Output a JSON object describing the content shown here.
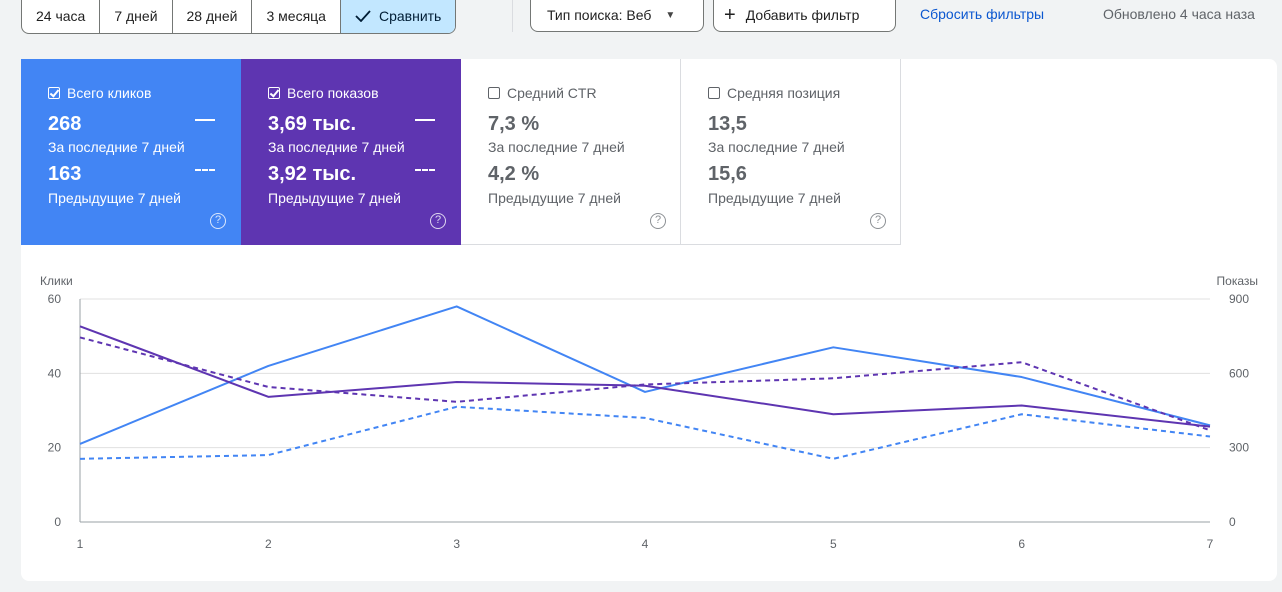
{
  "toolbar": {
    "ranges": [
      "24 часа",
      "7 дней",
      "28 дней",
      "3 месяца"
    ],
    "compare_label": "Сравнить",
    "search_type_label": "Тип поиска: Веб",
    "add_filter_label": "Добавить фильтр",
    "reset_label": "Сбросить фильтры",
    "updated_label": "Обновлено 4 часа наза"
  },
  "metrics": [
    {
      "label": "Всего кликов",
      "checked": true,
      "current": "268",
      "current_label": "За последние 7 дней",
      "previous": "163",
      "previous_label": "Предыдущие 7 дней",
      "color": "#4285f4"
    },
    {
      "label": "Всего показов",
      "checked": true,
      "current": "3,69 тыс.",
      "current_label": "За последние 7 дней",
      "previous": "3,92 тыс.",
      "previous_label": "Предыдущие 7 дней",
      "color": "#5e35b1"
    },
    {
      "label": "Средний CTR",
      "checked": false,
      "current": "7,3 %",
      "current_label": "За последние 7 дней",
      "previous": "4,2 %",
      "previous_label": "Предыдущие 7 дней"
    },
    {
      "label": "Средняя позиция",
      "checked": false,
      "current": "13,5",
      "current_label": "За последние 7 дней",
      "previous": "15,6",
      "previous_label": "Предыдущие 7 дней"
    }
  ],
  "help_glyph": "?",
  "chart_data": {
    "type": "line",
    "x": [
      1,
      2,
      3,
      4,
      5,
      6,
      7
    ],
    "ylabel": "Клики",
    "y2label": "Показы",
    "ylim": [
      0,
      60
    ],
    "y2lim": [
      0,
      900
    ],
    "yticks": [
      0,
      20,
      40,
      60
    ],
    "y2ticks": [
      0,
      300,
      600,
      900
    ],
    "grid": true,
    "series": [
      {
        "axis": "left",
        "style": "solid",
        "color": "#4285f4",
        "values": [
          21,
          42,
          58,
          35,
          47,
          39,
          26
        ]
      },
      {
        "axis": "left",
        "style": "dashed",
        "color": "#4285f4",
        "values": [
          17,
          18,
          31,
          28,
          17,
          29,
          23
        ]
      },
      {
        "axis": "right",
        "style": "solid",
        "color": "#5e35b1",
        "values": [
          790,
          505,
          565,
          550,
          435,
          470,
          385
        ]
      },
      {
        "axis": "right",
        "style": "dashed",
        "color": "#5e35b1",
        "values": [
          745,
          545,
          485,
          555,
          580,
          645,
          370
        ]
      }
    ]
  }
}
